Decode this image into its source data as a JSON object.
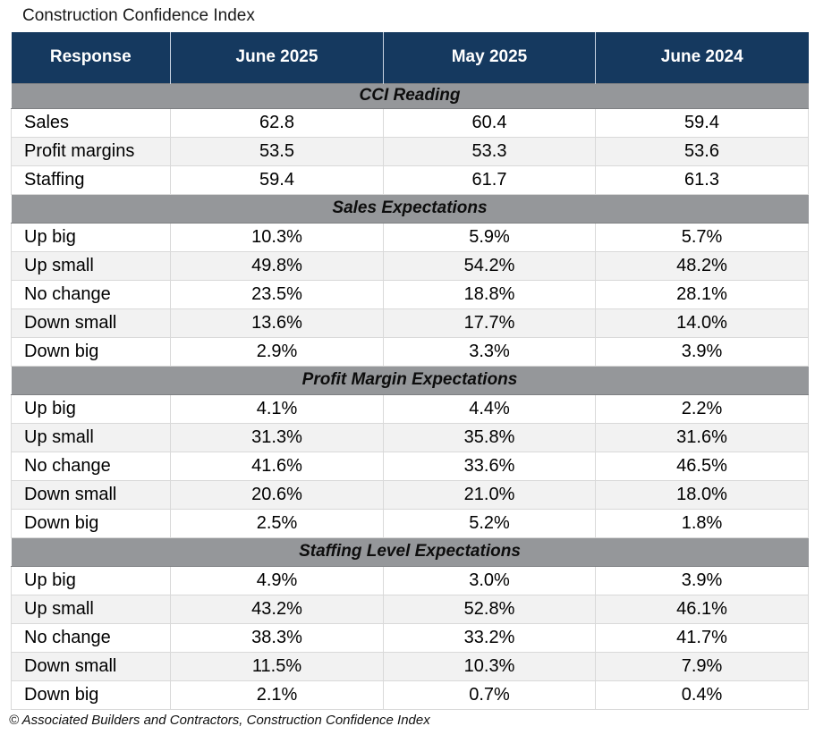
{
  "chart_data": {
    "type": "table",
    "title": "Construction Confidence Index",
    "columns": [
      "Response",
      "June 2025",
      "May 2025",
      "June 2024"
    ],
    "sections": [
      {
        "label": "CCI Reading",
        "rows": [
          {
            "response": "Sales",
            "values": [
              "62.8",
              "60.4",
              "59.4"
            ]
          },
          {
            "response": "Profit margins",
            "values": [
              "53.5",
              "53.3",
              "53.6"
            ]
          },
          {
            "response": "Staffing",
            "values": [
              "59.4",
              "61.7",
              "61.3"
            ]
          }
        ]
      },
      {
        "label": "Sales Expectations",
        "rows": [
          {
            "response": "Up big",
            "values": [
              "10.3%",
              "5.9%",
              "5.7%"
            ]
          },
          {
            "response": "Up small",
            "values": [
              "49.8%",
              "54.2%",
              "48.2%"
            ]
          },
          {
            "response": "No change",
            "values": [
              "23.5%",
              "18.8%",
              "28.1%"
            ]
          },
          {
            "response": "Down small",
            "values": [
              "13.6%",
              "17.7%",
              "14.0%"
            ]
          },
          {
            "response": "Down big",
            "values": [
              "2.9%",
              "3.3%",
              "3.9%"
            ]
          }
        ]
      },
      {
        "label": "Profit Margin Expectations",
        "rows": [
          {
            "response": "Up big",
            "values": [
              "4.1%",
              "4.4%",
              "2.2%"
            ]
          },
          {
            "response": "Up small",
            "values": [
              "31.3%",
              "35.8%",
              "31.6%"
            ]
          },
          {
            "response": "No change",
            "values": [
              "41.6%",
              "33.6%",
              "46.5%"
            ]
          },
          {
            "response": "Down small",
            "values": [
              "20.6%",
              "21.0%",
              "18.0%"
            ]
          },
          {
            "response": "Down big",
            "values": [
              "2.5%",
              "5.2%",
              "1.8%"
            ]
          }
        ]
      },
      {
        "label": "Staffing Level Expectations",
        "rows": [
          {
            "response": "Up big",
            "values": [
              "4.9%",
              "3.0%",
              "3.9%"
            ]
          },
          {
            "response": "Up small",
            "values": [
              "43.2%",
              "52.8%",
              "46.1%"
            ]
          },
          {
            "response": "No change",
            "values": [
              "38.3%",
              "33.2%",
              "41.7%"
            ]
          },
          {
            "response": "Down small",
            "values": [
              "11.5%",
              "10.3%",
              "7.9%"
            ]
          },
          {
            "response": "Down big",
            "values": [
              "2.1%",
              "0.7%",
              "0.4%"
            ]
          }
        ]
      }
    ],
    "source_note": "© Associated Builders and Contractors, Construction Confidence Index"
  },
  "colors": {
    "header_bg": "#15395f",
    "header_text": "#ffffff",
    "band_bg": "#95979a",
    "band_border": "#7e8083",
    "row_alt_bg": "#f2f2f2",
    "grid_border": "#d9d9d9"
  }
}
